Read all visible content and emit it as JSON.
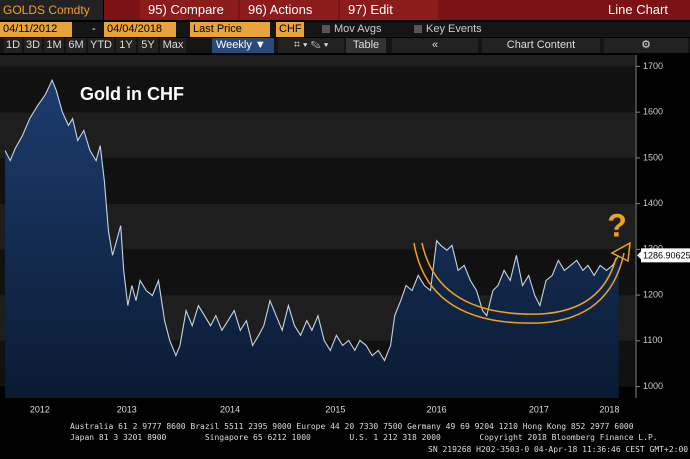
{
  "toolbar": {
    "ticker": "GOLDS Comdty",
    "menu": [
      "95) Compare",
      "96) Actions",
      "97) Edit"
    ],
    "view": "Line Chart",
    "start_date": "04/11/2012",
    "separator": "-",
    "end_date": "04/04/2018",
    "field": "Last Price",
    "currency": "CHF",
    "checkboxes": [
      "Mov Avgs",
      "Key Events"
    ],
    "periods": [
      "1D",
      "3D",
      "1M",
      "6M",
      "YTD",
      "1Y",
      "5Y",
      "Max"
    ],
    "frequency": "Weekly",
    "table": "Table",
    "collapse": "«",
    "chart_content": "Chart Content"
  },
  "chart_data": {
    "type": "line",
    "annotations": [
      "Gold in CHF",
      "?"
    ],
    "series": [
      {
        "color": "#c9d3e0",
        "fill": "#1d3d6e",
        "x": [
          2012.27,
          2012.32,
          2012.37,
          2012.44,
          2012.51,
          2012.59,
          2012.66,
          2012.73,
          2012.77,
          2012.83,
          2012.89,
          2012.93,
          2012.98,
          2013.04,
          2013.1,
          2013.16,
          2013.2,
          2013.24,
          2013.28,
          2013.32,
          2013.36,
          2013.4,
          2013.43,
          2013.47,
          2013.51,
          2013.55,
          2013.59,
          2013.65,
          2013.71,
          2013.77,
          2013.83,
          2013.88,
          2013.94,
          2013.98,
          2014.04,
          2014.1,
          2014.16,
          2014.22,
          2014.28,
          2014.33,
          2014.39,
          2014.45,
          2014.51,
          2014.57,
          2014.63,
          2014.69,
          2014.75,
          2014.8,
          2014.86,
          2014.92,
          2014.98,
          2015.04,
          2015.1,
          2015.16,
          2015.22,
          2015.27,
          2015.33,
          2015.39,
          2015.45,
          2015.51,
          2015.57,
          2015.63,
          2015.69,
          2015.74,
          2015.8,
          2015.86,
          2015.92,
          2015.98,
          2016.04,
          2016.08,
          2016.14,
          2016.19,
          2016.25,
          2016.31,
          2016.37,
          2016.43,
          2016.49,
          2016.53,
          2016.59,
          2016.64,
          2016.7,
          2016.76,
          2016.82,
          2016.88,
          2016.94,
          2016.98,
          2017.04,
          2017.09,
          2017.15,
          2017.21,
          2017.27,
          2017.33,
          2017.39,
          2017.45,
          2017.5,
          2017.56,
          2017.62,
          2017.68,
          2017.74,
          2017.8,
          2017.86,
          2017.92,
          2017.97,
          2018.03,
          2018.09,
          2018.15,
          2018.21,
          2018.27
        ],
        "values": [
          1516,
          1494,
          1521,
          1549,
          1586,
          1615,
          1637,
          1670,
          1648,
          1600,
          1571,
          1586,
          1538,
          1560,
          1516,
          1494,
          1527,
          1451,
          1341,
          1287,
          1319,
          1352,
          1254,
          1177,
          1221,
          1188,
          1232,
          1210,
          1199,
          1232,
          1144,
          1101,
          1068,
          1090,
          1166,
          1133,
          1177,
          1155,
          1133,
          1155,
          1123,
          1144,
          1166,
          1123,
          1144,
          1090,
          1112,
          1133,
          1188,
          1155,
          1123,
          1177,
          1133,
          1112,
          1144,
          1123,
          1155,
          1101,
          1079,
          1112,
          1090,
          1101,
          1079,
          1101,
          1090,
          1068,
          1079,
          1057,
          1090,
          1155,
          1188,
          1221,
          1210,
          1243,
          1221,
          1210,
          1319,
          1309,
          1298,
          1309,
          1254,
          1265,
          1232,
          1210,
          1166,
          1155,
          1210,
          1221,
          1254,
          1232,
          1287,
          1221,
          1243,
          1199,
          1177,
          1232,
          1243,
          1276,
          1254,
          1265,
          1276,
          1254,
          1265,
          1243,
          1265,
          1254,
          1265,
          1286.90625
        ]
      }
    ],
    "xlim": [
      2012.22,
      2018.43
    ],
    "ylim": [
      975,
      1725
    ],
    "yticks": [
      1000,
      1100,
      1200,
      1300,
      1400,
      1500,
      1600,
      1700
    ],
    "xticks": [
      {
        "value": 2012.61,
        "label": "2012"
      },
      {
        "value": 2013.46,
        "label": "2013"
      },
      {
        "value": 2014.47,
        "label": "2014"
      },
      {
        "value": 2015.5,
        "label": "2015"
      },
      {
        "value": 2016.49,
        "label": "2016"
      },
      {
        "value": 2017.49,
        "label": "2017"
      },
      {
        "value": 2018.18,
        "label": "2018"
      }
    ],
    "grid": true
  },
  "footer": [
    "Australia 61 2 9777 8600 Brazil 5511 2395 9000 Europe 44 20 7330 7500 Germany 49 69 9204 1210 Hong Kong 852 2977 6000",
    "Japan 81 3 3201 8900        Singapore 65 6212 1000        U.S. 1 212 318 2000        Copyright 2018 Bloomberg Finance L.P.",
    "SN 219268 H202-3503-0 04-Apr-18 11:36:46 CEST GMT+2:00"
  ]
}
